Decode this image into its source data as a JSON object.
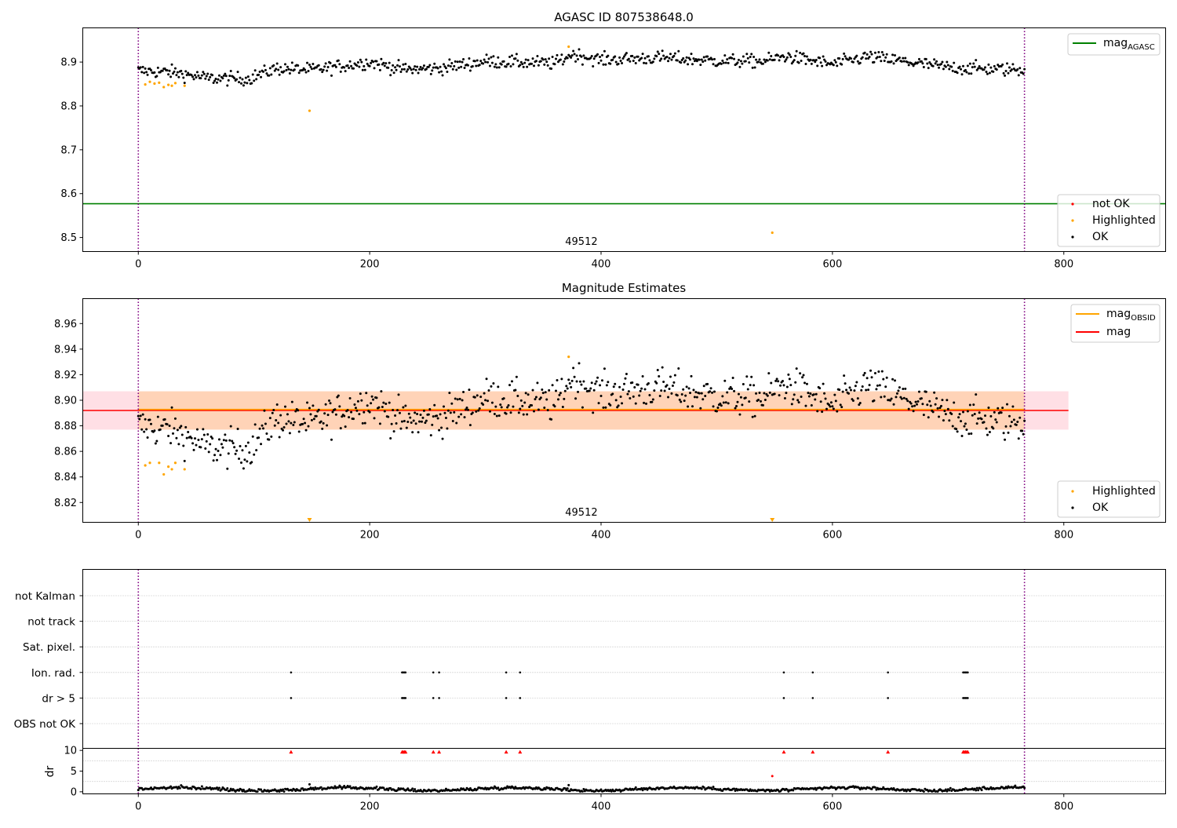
{
  "chart_data": [
    {
      "type": "scatter",
      "title": "AGASC ID 807538648.0",
      "xlabel": "",
      "ylabel": "",
      "xlim": [
        -48,
        888
      ],
      "ylim": [
        8.468,
        8.978
      ],
      "xticks": [
        0,
        200,
        400,
        600,
        800
      ],
      "yticks": [
        8.5,
        8.6,
        8.7,
        8.8,
        8.9
      ],
      "ytick_labels": [
        "8.5",
        "8.6",
        "8.7",
        "8.8",
        "8.9"
      ],
      "obs_boundaries": [
        0,
        766
      ],
      "obs_label": {
        "text": "49512",
        "x": 383
      },
      "hline": {
        "name": "mag",
        "sub": "AGASC",
        "value": 8.577,
        "color": "#008000"
      },
      "legend_lines": [
        {
          "name": "mag",
          "sub": "AGASC",
          "color": "#008000"
        }
      ],
      "legend_points": [
        {
          "name": "not OK",
          "color": "#ff0000"
        },
        {
          "name": "Highlighted",
          "color": "#ffa500"
        },
        {
          "name": "OK",
          "color": "#000000"
        }
      ],
      "baseline": [
        [
          0,
          8.88
        ],
        [
          30,
          8.877
        ],
        [
          60,
          8.863
        ],
        [
          95,
          8.862
        ],
        [
          120,
          8.886
        ],
        [
          150,
          8.882
        ],
        [
          200,
          8.9
        ],
        [
          230,
          8.883
        ],
        [
          260,
          8.886
        ],
        [
          300,
          8.902
        ],
        [
          360,
          8.897
        ],
        [
          375,
          8.918
        ],
        [
          400,
          8.905
        ],
        [
          450,
          8.91
        ],
        [
          500,
          8.903
        ],
        [
          540,
          8.902
        ],
        [
          560,
          8.913
        ],
        [
          600,
          8.895
        ],
        [
          630,
          8.912
        ],
        [
          660,
          8.902
        ],
        [
          700,
          8.888
        ],
        [
          730,
          8.885
        ],
        [
          766,
          8.882
        ]
      ],
      "highlighted": [
        [
          6,
          8.849
        ],
        [
          10,
          8.855
        ],
        [
          14,
          8.851
        ],
        [
          18,
          8.853
        ],
        [
          22,
          8.843
        ],
        [
          26,
          8.848
        ],
        [
          29,
          8.846
        ],
        [
          32,
          8.852
        ],
        [
          40,
          8.846
        ],
        [
          148,
          8.789
        ],
        [
          372,
          8.935
        ],
        [
          548,
          8.511
        ]
      ]
    },
    {
      "type": "scatter",
      "title": "Magnitude Estimates",
      "xlabel": "",
      "ylabel": "",
      "xlim": [
        -48,
        888
      ],
      "ylim": [
        8.8045,
        8.9795
      ],
      "xticks": [
        0,
        200,
        400,
        600,
        800
      ],
      "yticks": [
        8.82,
        8.84,
        8.86,
        8.88,
        8.9,
        8.92,
        8.94,
        8.96
      ],
      "ytick_labels": [
        "8.82",
        "8.84",
        "8.86",
        "8.88",
        "8.90",
        "8.92",
        "8.94",
        "8.96"
      ],
      "obs_boundaries": [
        0,
        766
      ],
      "obs_label": {
        "text": "49512",
        "x": 383
      },
      "mag_value": 8.892,
      "mag_obsid_value": 8.8925,
      "band_pink": {
        "low": 8.877,
        "high": 8.907,
        "xmin": -48,
        "xmax": 804
      },
      "band_orange": {
        "low": 8.877,
        "high": 8.907,
        "xmin": 0,
        "xmax": 766
      },
      "legend_lines": [
        {
          "name": "mag",
          "sub": "OBSID",
          "color": "#ffa500"
        },
        {
          "name": "mag",
          "sub": "",
          "color": "#ff0000"
        }
      ],
      "legend_points": [
        {
          "name": "Highlighted",
          "color": "#ffa500"
        },
        {
          "name": "OK",
          "color": "#000000"
        }
      ],
      "highlighted": [
        [
          6,
          8.849
        ],
        [
          10,
          8.851
        ],
        [
          18,
          8.851
        ],
        [
          22,
          8.842
        ],
        [
          26,
          8.848
        ],
        [
          29,
          8.846
        ],
        [
          32,
          8.851
        ],
        [
          40,
          8.846
        ],
        [
          372,
          8.934
        ]
      ],
      "offscale_markers": [
        148,
        548
      ]
    },
    {
      "type": "scatter",
      "title": "",
      "xlabel": "",
      "ylabel": "",
      "xlim": [
        -48,
        888
      ],
      "xticks": [
        0,
        200,
        400,
        600,
        800
      ],
      "obs_boundaries": [
        0,
        766
      ],
      "flag_rows": [
        "not Kalman",
        "not track",
        "Sat. pixel.",
        "Ion. rad.",
        "dr > 5",
        "OBS not OK"
      ],
      "flag_points": {
        "Ion. rad.": [
          132,
          228,
          229,
          230,
          231,
          255,
          260,
          318,
          330,
          558,
          583,
          648,
          713,
          714,
          715,
          716,
          717
        ],
        "dr > 5": [
          132,
          228,
          229,
          230,
          231,
          255,
          260,
          318,
          330,
          558,
          583,
          648,
          713,
          714,
          715,
          716,
          717
        ]
      }
    },
    {
      "type": "scatter",
      "title": "",
      "xlabel": "",
      "ylabel": "dr",
      "xlim": [
        -48,
        888
      ],
      "ylim": [
        -0.5,
        10.5
      ],
      "xticks": [
        0,
        200,
        400,
        600,
        800
      ],
      "yticks": [
        0,
        5,
        10
      ],
      "ytick_labels": [
        "0",
        "5",
        "10"
      ],
      "obs_boundaries": [
        0,
        766
      ],
      "clipped_points": [
        132,
        228,
        229,
        230,
        231,
        255,
        260,
        318,
        330,
        558,
        583,
        648,
        713,
        714,
        715,
        716,
        717
      ],
      "extra_points": [
        [
          148,
          1.8
        ],
        [
          372,
          1.6
        ],
        [
          548,
          3.8
        ]
      ]
    }
  ]
}
